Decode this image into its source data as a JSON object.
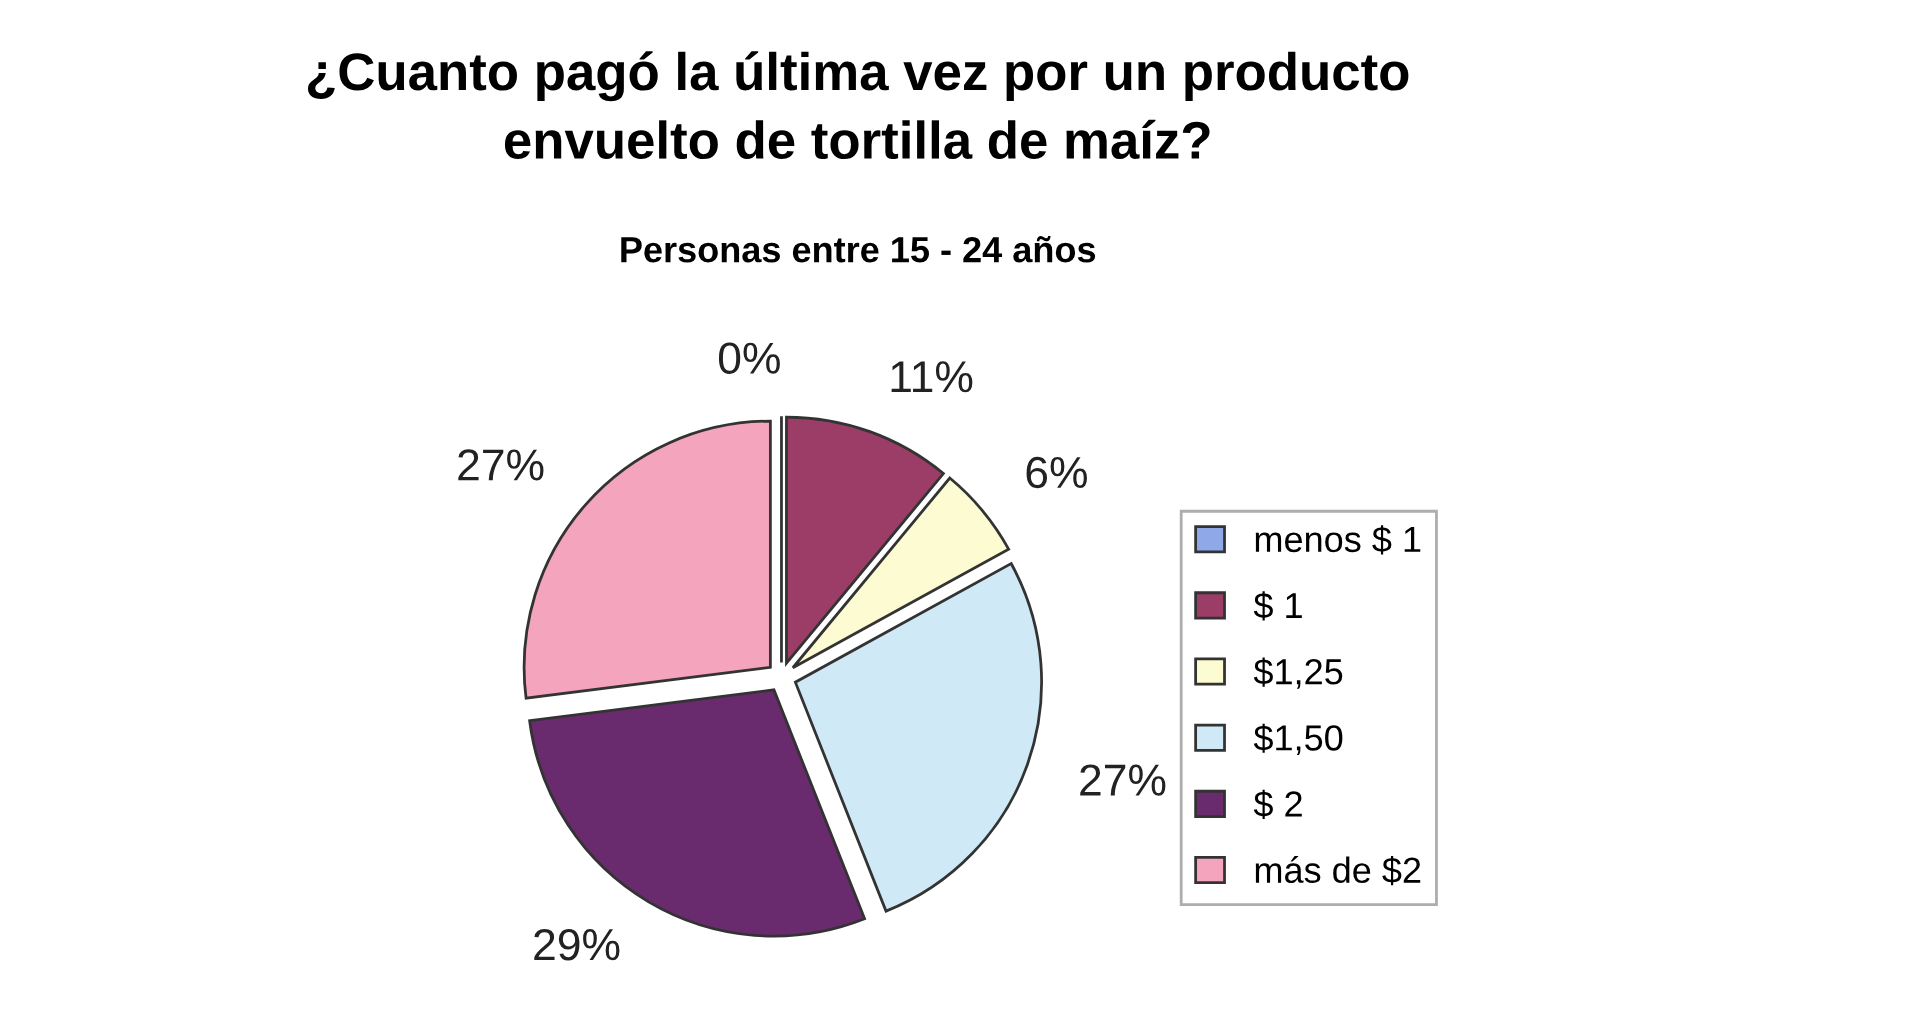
{
  "chart_data": {
    "type": "pie",
    "title": "¿Cuanto pagó la última vez por un producto\nenvuelto de tortilla de maíz?",
    "subtitle": "Personas entre 15 - 24 años",
    "categories": [
      "menos $ 1",
      "$ 1",
      "$1,25",
      "$1,50",
      "$ 2",
      "más de $2"
    ],
    "values": [
      0,
      11,
      6,
      27,
      29,
      27
    ],
    "value_labels": [
      "0%",
      "11%",
      "6%",
      "27%",
      "29%",
      "27%"
    ],
    "colors": [
      "#8fa8e8",
      "#9c3d68",
      "#fdfbd2",
      "#cfeaf6",
      "#6a2a6e",
      "#f4a4bc"
    ],
    "legend": "right"
  }
}
